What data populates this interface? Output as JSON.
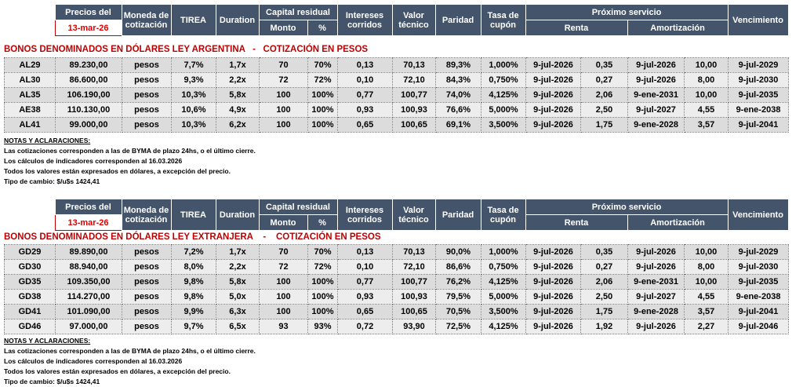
{
  "sections": [
    {
      "header": {
        "price": "Precios del",
        "date": "13-mar-26",
        "currency": "Moneda de cotización",
        "tirea": "TIREA",
        "duration": "Duration",
        "capital": "Capital residual",
        "amount": "Monto",
        "percent": "%",
        "interest": "Intereses corridos",
        "technical_value": "Valor técnico",
        "parity": "Paridad",
        "coupon": "Tasa de cupón",
        "next_service": "Próximo servicio",
        "income": "Renta",
        "amortization": "Amortización",
        "maturity": "Vencimiento"
      },
      "title": "BONOS DENOMINADOS EN DÓLARES LEY ARGENTINA   -   COTIZACIÓN EN PESOS",
      "rows": [
        [
          "AL29",
          "89.230,00",
          "pesos",
          "7,7%",
          "1,7x",
          "70",
          "70%",
          "0,13",
          "70,13",
          "89,3%",
          "1,000%",
          "9-jul-2026",
          "0,35",
          "9-jul-2026",
          "10,00",
          "9-jul-2029"
        ],
        [
          "AL30",
          "86.600,00",
          "pesos",
          "9,3%",
          "2,2x",
          "72",
          "72%",
          "0,10",
          "72,10",
          "84,3%",
          "0,750%",
          "9-jul-2026",
          "0,27",
          "9-jul-2026",
          "8,00",
          "9-jul-2030"
        ],
        [
          "AL35",
          "106.190,00",
          "pesos",
          "10,3%",
          "5,8x",
          "100",
          "100%",
          "0,77",
          "100,77",
          "74,0%",
          "4,125%",
          "9-jul-2026",
          "2,06",
          "9-ene-2031",
          "10,00",
          "9-jul-2035"
        ],
        [
          "AE38",
          "110.130,00",
          "pesos",
          "10,6%",
          "4,9x",
          "100",
          "100%",
          "0,93",
          "100,93",
          "76,6%",
          "5,000%",
          "9-jul-2026",
          "2,50",
          "9-jul-2027",
          "4,55",
          "9-ene-2038"
        ],
        [
          "AL41",
          "99.000,00",
          "pesos",
          "10,3%",
          "6,2x",
          "100",
          "100%",
          "0,65",
          "100,65",
          "69,1%",
          "3,500%",
          "9-jul-2026",
          "1,75",
          "9-ene-2028",
          "3,57",
          "9-jul-2041"
        ]
      ],
      "notes": {
        "heading": "NOTAS Y ACLARACIONES:",
        "lines": [
          "Las cotizaciones corresponden a las de BYMA de plazo 24hs, o el último cierre.",
          "Los cálculos de indicadores corresponden al 16.03.2026",
          "Todos los valores están expresados en dólares, a excepción del precio.",
          "Tipo de cambio: $/u$s 1424,41"
        ]
      }
    },
    {
      "header": {
        "price": "Precios del",
        "date": "13-mar-26",
        "currency": "Moneda de cotización",
        "tirea": "TIREA",
        "duration": "Duration",
        "capital": "Capital residual",
        "amount": "Monto",
        "percent": "%",
        "interest": "Intereses corridos",
        "technical_value": "Valor técnico",
        "parity": "Paridad",
        "coupon": "Tasa de cupón",
        "next_service": "Próximo servicio",
        "income": "Renta",
        "amortization": "Amortización",
        "maturity": "Vencimiento"
      },
      "title": "BONOS DENOMINADOS EN DÓLARES LEY EXTRANJERA    -    COTIZACIÓN EN PESOS",
      "rows": [
        [
          "GD29",
          "89.890,00",
          "pesos",
          "7,2%",
          "1,7x",
          "70",
          "70%",
          "0,13",
          "70,13",
          "90,0%",
          "1,000%",
          "9-jul-2026",
          "0,35",
          "9-jul-2026",
          "10,00",
          "9-jul-2029"
        ],
        [
          "GD30",
          "88.940,00",
          "pesos",
          "8,0%",
          "2,2x",
          "72",
          "72%",
          "0,10",
          "72,10",
          "86,6%",
          "0,750%",
          "9-jul-2026",
          "0,27",
          "9-jul-2026",
          "8,00",
          "9-jul-2030"
        ],
        [
          "GD35",
          "109.350,00",
          "pesos",
          "9,8%",
          "5,8x",
          "100",
          "100%",
          "0,77",
          "100,77",
          "76,2%",
          "4,125%",
          "9-jul-2026",
          "2,06",
          "9-ene-2031",
          "10,00",
          "9-jul-2035"
        ],
        [
          "GD38",
          "114.270,00",
          "pesos",
          "9,8%",
          "5,0x",
          "100",
          "100%",
          "0,93",
          "100,93",
          "79,5%",
          "5,000%",
          "9-jul-2026",
          "2,50",
          "9-jul-2027",
          "4,55",
          "9-ene-2038"
        ],
        [
          "GD41",
          "101.090,00",
          "pesos",
          "9,9%",
          "6,3x",
          "100",
          "100%",
          "0,65",
          "100,65",
          "70,5%",
          "3,500%",
          "9-jul-2026",
          "1,75",
          "9-ene-2028",
          "3,57",
          "9-jul-2041"
        ],
        [
          "GD46",
          "97.000,00",
          "pesos",
          "9,7%",
          "6,5x",
          "93",
          "93%",
          "0,72",
          "93,90",
          "72,5%",
          "4,125%",
          "9-jul-2026",
          "1,92",
          "9-jul-2026",
          "2,27",
          "9-jul-2046"
        ]
      ],
      "notes": {
        "heading": "NOTAS Y ACLARACIONES:",
        "lines": [
          "Las cotizaciones corresponden a las de BYMA de plazo 24hs, o el último cierre.",
          "Los cálculos de indicadores corresponden al 16.03.2026",
          "Todos los valores están expresados en dólares, a excepción del precio.",
          "Tipo de cambio: $/u$s 1424,41"
        ]
      }
    }
  ]
}
